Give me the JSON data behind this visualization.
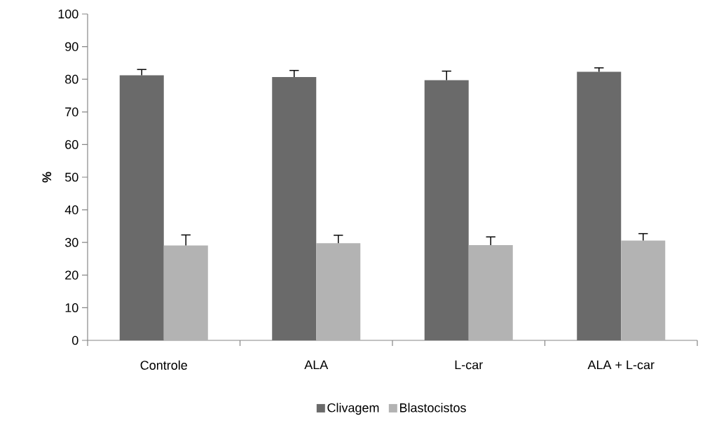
{
  "chart_data": {
    "type": "bar",
    "ylabel": "%",
    "categories": [
      "Controle",
      "ALA",
      "L-car",
      "ALA + L-car"
    ],
    "series": [
      {
        "name": "Clivagem",
        "color": "#6a6a6a",
        "values": [
          81.2,
          80.7,
          79.7,
          82.3
        ],
        "errors": [
          [
            81.2,
            83.0
          ],
          [
            80.7,
            82.7
          ],
          [
            79.7,
            82.5
          ],
          [
            82.3,
            83.5
          ]
        ]
      },
      {
        "name": "Blastocistos",
        "color": "#b3b3b3",
        "values": [
          29.1,
          29.8,
          29.2,
          30.6
        ],
        "errors": [
          [
            29.1,
            32.3
          ],
          [
            29.8,
            32.2
          ],
          [
            29.2,
            31.7
          ],
          [
            30.6,
            32.7
          ]
        ]
      }
    ],
    "ylim": [
      0,
      100
    ],
    "yticks": [
      0,
      10,
      20,
      30,
      40,
      50,
      60,
      70,
      80,
      90,
      100
    ],
    "grid": false,
    "legend": "bottom"
  }
}
